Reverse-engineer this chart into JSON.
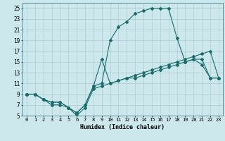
{
  "xlabel": "Humidex (Indice chaleur)",
  "bg_color": "#cce8ec",
  "grid_color": "#aacccc",
  "line_color": "#1a6b6b",
  "xlim": [
    -0.5,
    23.5
  ],
  "ylim": [
    5,
    26
  ],
  "xticks": [
    0,
    1,
    2,
    3,
    4,
    5,
    6,
    7,
    8,
    9,
    10,
    11,
    12,
    13,
    14,
    15,
    16,
    17,
    18,
    19,
    20,
    21,
    22,
    23
  ],
  "yticks": [
    5,
    7,
    9,
    11,
    13,
    15,
    17,
    19,
    21,
    23,
    25
  ],
  "series": [
    {
      "x": [
        0,
        1,
        2,
        3,
        4,
        5,
        6,
        7,
        8,
        9,
        10,
        11,
        12,
        13,
        14,
        15,
        16,
        17,
        18,
        19,
        20,
        21,
        22,
        23
      ],
      "y": [
        9,
        9,
        8,
        7.5,
        7.5,
        6.5,
        5.5,
        7,
        10.5,
        15.5,
        11,
        11.5,
        12,
        12,
        12.5,
        13,
        13.5,
        14,
        14.5,
        15,
        15.5,
        15.5,
        12,
        12
      ]
    },
    {
      "x": [
        0,
        1,
        2,
        3,
        4,
        5,
        6,
        7,
        8,
        9,
        10,
        11,
        12,
        13,
        14,
        15,
        16,
        17,
        18,
        19,
        20,
        21,
        22,
        23
      ],
      "y": [
        9,
        9,
        8,
        7.5,
        7.5,
        6.5,
        5.5,
        7,
        10.5,
        11,
        19,
        21.5,
        22.5,
        24,
        24.5,
        25,
        25,
        25,
        19.5,
        15,
        15.5,
        14.5,
        12,
        12
      ]
    },
    {
      "x": [
        0,
        1,
        2,
        3,
        4,
        5,
        6,
        7,
        8,
        9,
        10,
        11,
        12,
        13,
        14,
        15,
        16,
        17,
        18,
        19,
        20,
        21,
        22,
        23
      ],
      "y": [
        9,
        9,
        8,
        7,
        7,
        6.5,
        5,
        6.5,
        10,
        10.5,
        11,
        11.5,
        12,
        12.5,
        13,
        13.5,
        14,
        14.5,
        15,
        15.5,
        16,
        16.5,
        17,
        12
      ]
    }
  ]
}
